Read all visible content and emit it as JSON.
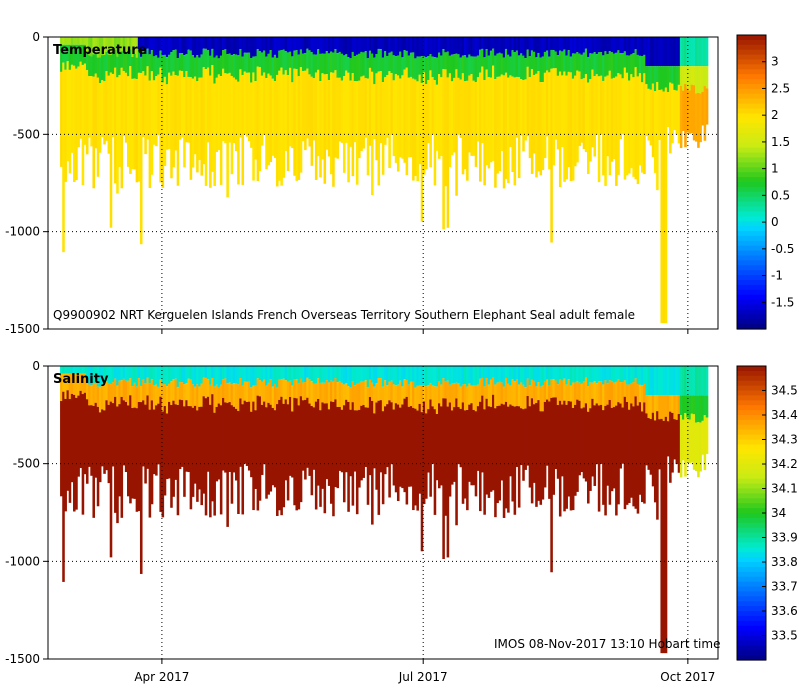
{
  "figure": {
    "caption": "Q9900902 NRT Kerguelen Islands French Overseas Territory Southern Elephant Seal adult female",
    "footer": "IMOS 08-Nov-2017 13:10 Hobart time"
  },
  "chart_data": [
    {
      "type": "heatmap",
      "title": "Temperature",
      "xlabel": "",
      "ylabel": "",
      "x_range": [
        0,
        1
      ],
      "x_ticks": [
        {
          "label": "Apr 2017",
          "value": 0.17
        },
        {
          "label": "Jul 2017",
          "value": 0.56
        },
        {
          "label": "Oct 2017",
          "value": 0.955
        }
      ],
      "ylim": [
        -1500,
        0
      ],
      "y_ticks": [
        0,
        -500,
        -1000,
        -1500
      ],
      "grid": true,
      "colorbar": {
        "min": -2.0,
        "max": 3.5,
        "ticks": [
          3,
          2.5,
          2,
          1.5,
          1,
          0.5,
          0,
          -0.5,
          -1,
          -1.5
        ]
      },
      "surface_value": -1.7,
      "subsurface_value": 0.7,
      "deep_value": 2.0
    },
    {
      "type": "heatmap",
      "title": "Salinity",
      "xlabel": "",
      "ylabel": "",
      "x_range": [
        0,
        1
      ],
      "x_ticks": [
        {
          "label": "Apr 2017",
          "value": 0.17
        },
        {
          "label": "Jul 2017",
          "value": 0.56
        },
        {
          "label": "Oct 2017",
          "value": 0.955
        }
      ],
      "ylim": [
        -1500,
        0
      ],
      "y_ticks": [
        0,
        -500,
        -1000,
        -1500
      ],
      "grid": true,
      "colorbar": {
        "min": 33.4,
        "max": 34.6,
        "ticks": [
          34.5,
          34.4,
          34.3,
          34.2,
          34.1,
          34,
          33.9,
          33.8,
          33.7,
          33.6,
          33.5
        ]
      },
      "surface_value": 33.85,
      "subsurface_value": 34.35,
      "deep_value": 34.7
    }
  ]
}
